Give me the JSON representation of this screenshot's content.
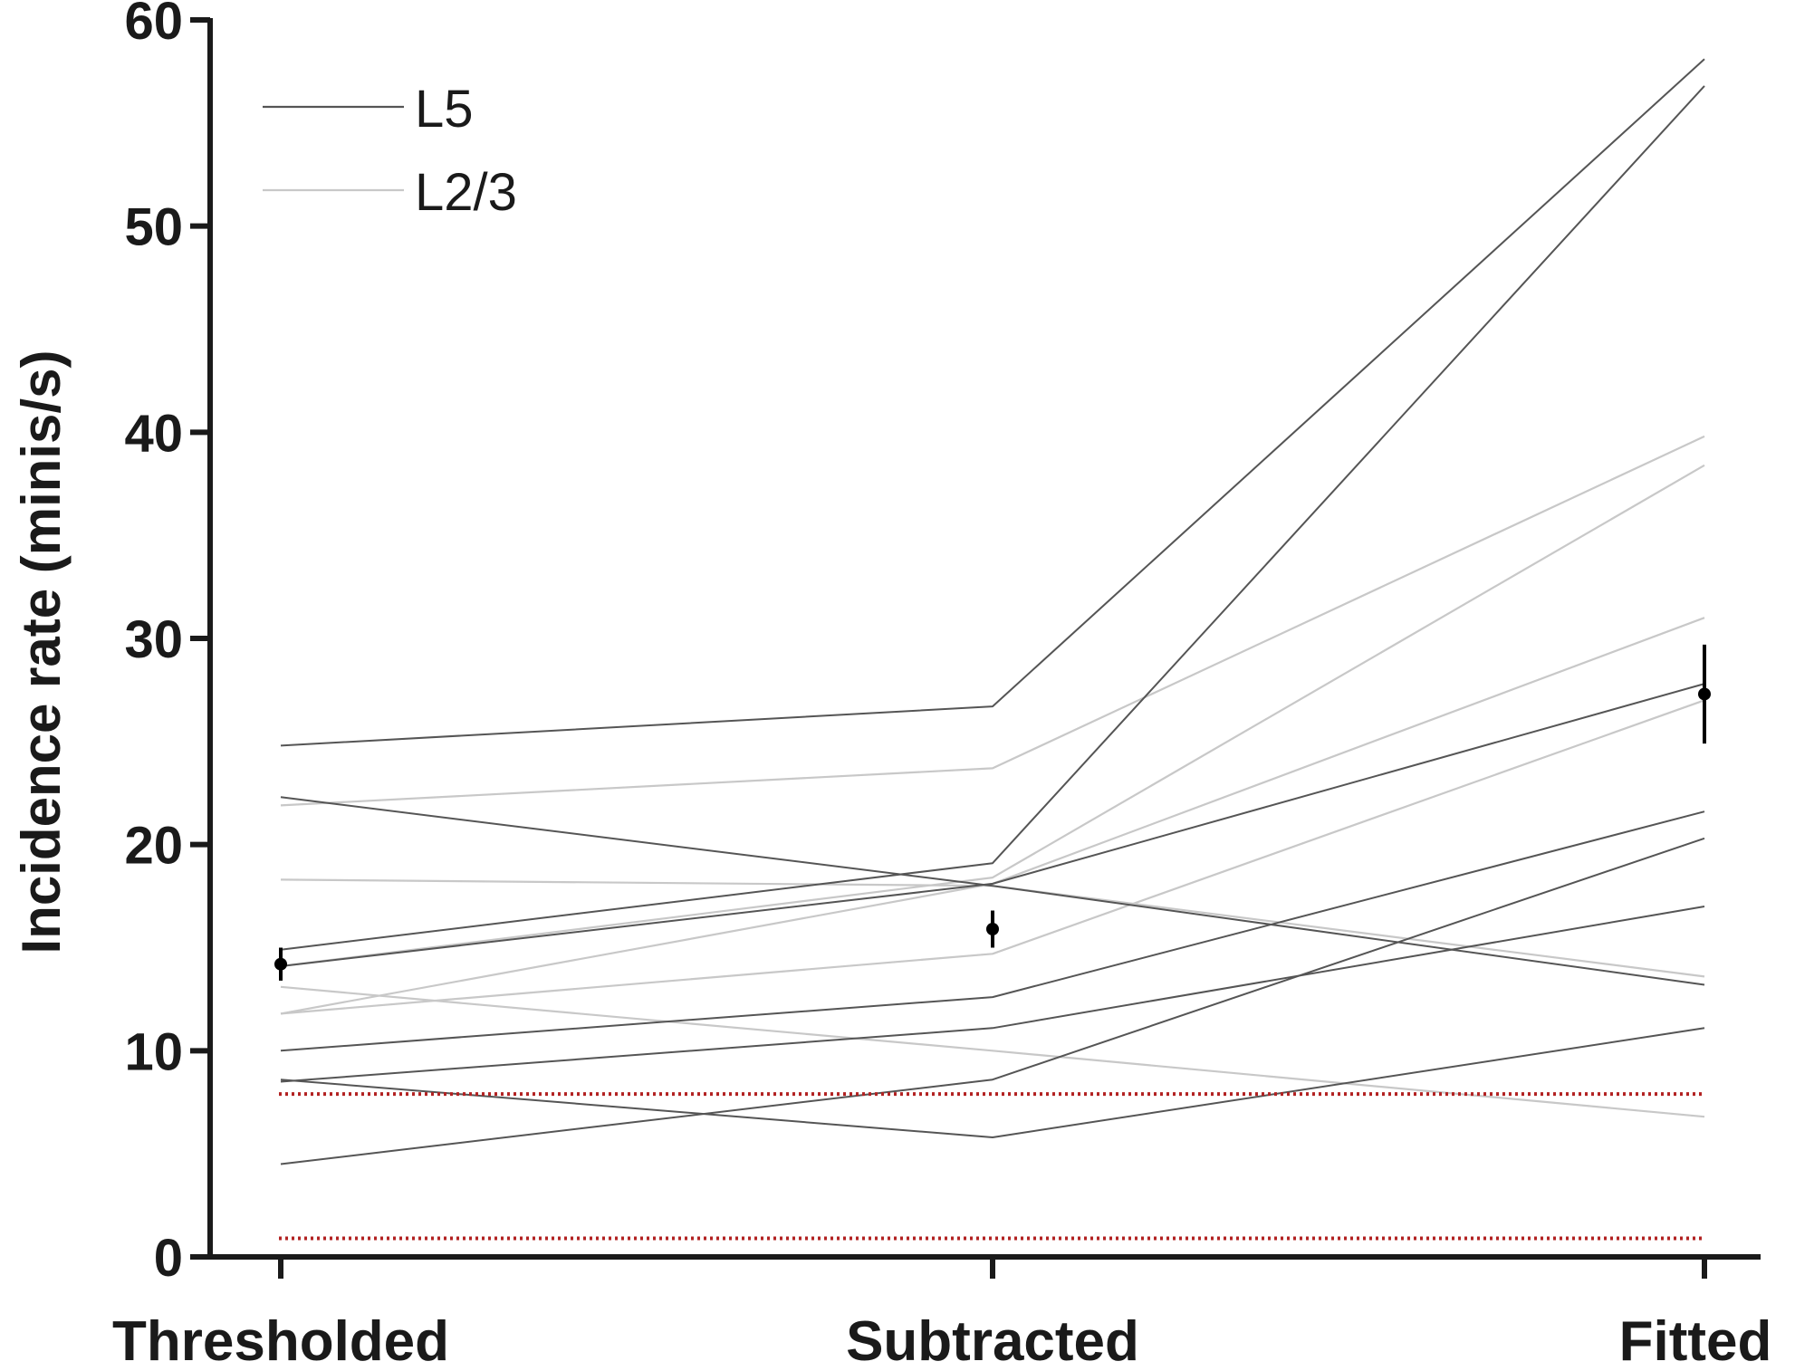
{
  "chart_data": {
    "type": "line",
    "title": "",
    "xlabel": "",
    "ylabel": "Incidence rate (minis/s)",
    "ylim": [
      0,
      60
    ],
    "yticks": [
      0,
      10,
      20,
      30,
      40,
      50,
      60
    ],
    "categories": [
      "Thresholded",
      "Subtracted",
      "Fitted"
    ],
    "legend": {
      "position": "top-left",
      "entries": [
        {
          "label": "L5",
          "color": "#555555"
        },
        {
          "label": "L2/3",
          "color": "#c8c8c8"
        }
      ]
    },
    "series": [
      {
        "name": "L5",
        "values": [
          24.8,
          26.7,
          58.1
        ]
      },
      {
        "name": "L5",
        "values": [
          22.3,
          18.0,
          13.2
        ]
      },
      {
        "name": "L5",
        "values": [
          14.9,
          19.1,
          56.8
        ]
      },
      {
        "name": "L5",
        "values": [
          10.0,
          12.6,
          21.6
        ]
      },
      {
        "name": "L5",
        "values": [
          8.5,
          11.1,
          17.0
        ]
      },
      {
        "name": "L5",
        "values": [
          8.6,
          5.8,
          11.1
        ]
      },
      {
        "name": "L5",
        "values": [
          4.5,
          8.6,
          20.3
        ]
      },
      {
        "name": "L5",
        "values": [
          14.1,
          18.1,
          27.8
        ]
      },
      {
        "name": "L2/3",
        "values": [
          21.9,
          23.7,
          39.8
        ]
      },
      {
        "name": "L2/3",
        "values": [
          18.3,
          18.0,
          13.6
        ]
      },
      {
        "name": "L2/3",
        "values": [
          14.1,
          18.4,
          38.4
        ]
      },
      {
        "name": "L2/3",
        "values": [
          13.1,
          10.0,
          6.8
        ]
      },
      {
        "name": "L2/3",
        "values": [
          11.8,
          18.1,
          31.0
        ]
      },
      {
        "name": "L2/3",
        "values": [
          11.8,
          14.7,
          27.0
        ]
      }
    ],
    "mean_points": [
      {
        "category": "Thresholded",
        "value": 14.2,
        "error": 0.8
      },
      {
        "category": "Subtracted",
        "value": 15.9,
        "error": 0.9
      },
      {
        "category": "Fitted",
        "value": 27.3,
        "error": 2.4
      }
    ],
    "reference_lines": [
      {
        "value": 7.9,
        "style": "dotted",
        "color": "#b22222"
      },
      {
        "value": 0.9,
        "style": "dotted",
        "color": "#b22222"
      }
    ],
    "colors": {
      "axis": "#1a1a1a",
      "L5": "#555555",
      "L2/3": "#c8c8c8",
      "mean": "#000000",
      "reference": "#b22222"
    }
  }
}
